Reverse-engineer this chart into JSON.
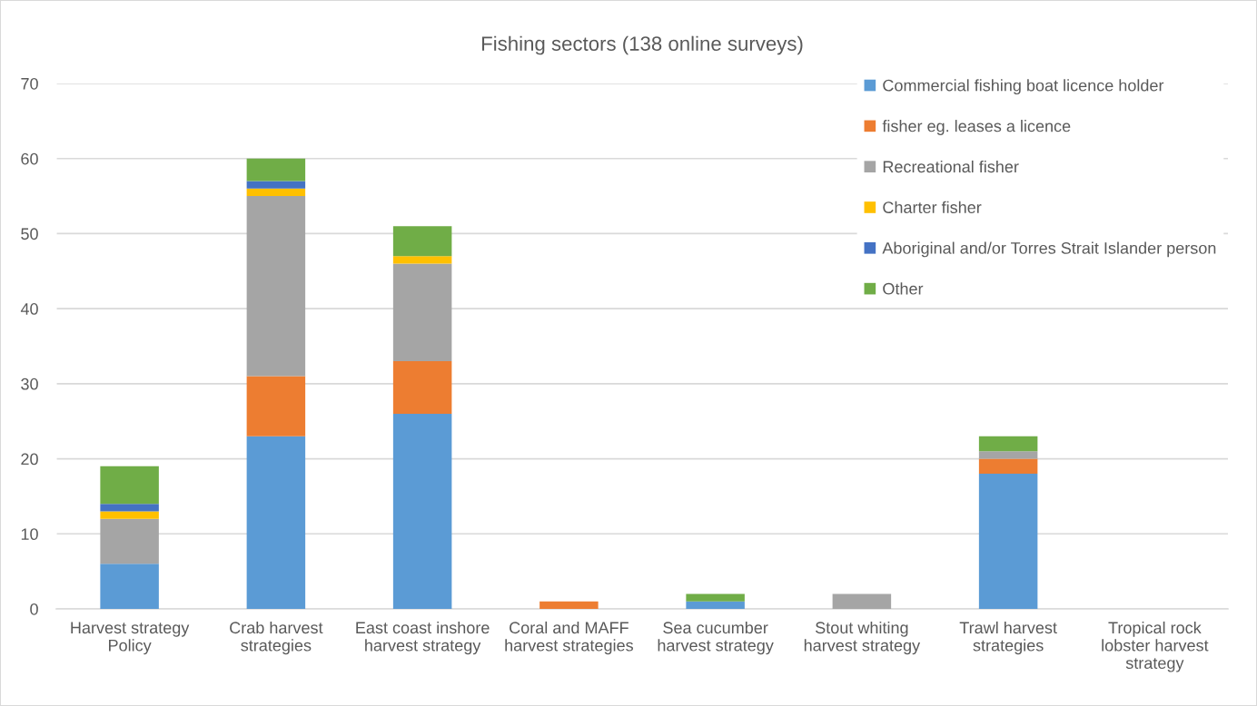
{
  "chart_data": {
    "type": "bar",
    "title": "Fishing sectors (138 online surveys)",
    "categories": [
      "Harvest strategy Policy",
      "Crab harvest strategies",
      "East coast inshore harvest strategy",
      "Coral and MAFF harvest strategies",
      "Sea cucumber harvest strategy",
      "Stout whiting harvest strategy",
      "Trawl harvest strategies",
      "Tropical rock lobster harvest strategy"
    ],
    "series": [
      {
        "name": "Commercial fishing boat licence holder",
        "color": "#5b9bd5",
        "values": [
          6,
          23,
          26,
          0,
          1,
          0,
          18,
          0
        ]
      },
      {
        "name": "fisher eg. leases a licence",
        "color": "#ed7d31",
        "values": [
          0,
          8,
          7,
          1,
          0,
          0,
          2,
          0
        ]
      },
      {
        "name": "Recreational fisher",
        "color": "#a5a5a5",
        "values": [
          6,
          24,
          13,
          0,
          0,
          2,
          1,
          0
        ]
      },
      {
        "name": "Charter fisher",
        "color": "#ffc000",
        "values": [
          1,
          1,
          1,
          0,
          0,
          0,
          0,
          0
        ]
      },
      {
        "name": "Aboriginal and/or Torres Strait Islander person",
        "color": "#4472c4",
        "values": [
          1,
          1,
          0,
          0,
          0,
          0,
          0,
          0
        ]
      },
      {
        "name": "Other",
        "color": "#70ad47",
        "values": [
          5,
          3,
          4,
          0,
          1,
          0,
          2,
          0
        ]
      }
    ],
    "stacked": true,
    "ylim": [
      0,
      70
    ],
    "yticks": [
      0,
      10,
      20,
      30,
      40,
      50,
      60,
      70
    ],
    "grid": "y",
    "legend": "top right"
  }
}
